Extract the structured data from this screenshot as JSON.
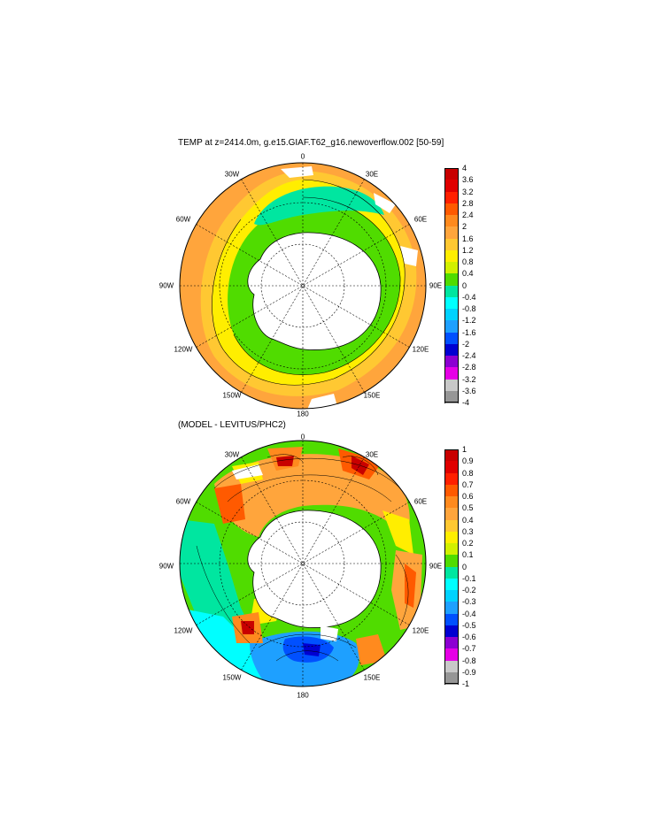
{
  "panels": [
    {
      "title": "TEMP at z=2414.0m, g.e15.GIAF.T62_g16.newoverflow.002 [50-59]",
      "lon_labels": [
        "0",
        "30E",
        "60E",
        "90E",
        "120E",
        "150E",
        "180",
        "150W",
        "120W",
        "90W",
        "60W",
        "30W"
      ],
      "colorbar": {
        "labels": [
          "4",
          "3.6",
          "3.2",
          "2.8",
          "2.4",
          "2",
          "1.6",
          "1.2",
          "0.8",
          "0.4",
          "0",
          "-0.4",
          "-0.8",
          "-1.2",
          "-1.6",
          "-2",
          "-2.4",
          "-2.8",
          "-3.2",
          "-3.6",
          "-4"
        ],
        "colors": [
          "#c80000",
          "#e00000",
          "#ff2000",
          "#ff5a00",
          "#ff8a1e",
          "#ffa53c",
          "#ffc832",
          "#ffee00",
          "#d2f000",
          "#50dc00",
          "#00e6a0",
          "#00ffff",
          "#00d2ff",
          "#1ea0ff",
          "#0050ff",
          "#0000d2",
          "#8c00d2",
          "#e600e6",
          "#c8c8c8",
          "#969696"
        ]
      }
    },
    {
      "title": "(MODEL - LEVITUS/PHC2)",
      "lon_labels": [
        "0",
        "30E",
        "60E",
        "90E",
        "120E",
        "150E",
        "180",
        "150W",
        "120W",
        "90W",
        "60W",
        "30W"
      ],
      "colorbar": {
        "labels": [
          "1",
          "0.9",
          "0.8",
          "0.7",
          "0.6",
          "0.5",
          "0.4",
          "0.3",
          "0.2",
          "0.1",
          "0",
          "-0.1",
          "-0.2",
          "-0.3",
          "-0.4",
          "-0.5",
          "-0.6",
          "-0.7",
          "-0.8",
          "-0.9",
          "-1"
        ],
        "colors": [
          "#c80000",
          "#e00000",
          "#ff2000",
          "#ff5a00",
          "#ff8a1e",
          "#ffa53c",
          "#ffc832",
          "#ffee00",
          "#d2f000",
          "#50dc00",
          "#00e6a0",
          "#00ffff",
          "#00d2ff",
          "#1ea0ff",
          "#0050ff",
          "#0000d2",
          "#8c00d2",
          "#e600e6",
          "#c8c8c8",
          "#969696"
        ]
      }
    }
  ]
}
